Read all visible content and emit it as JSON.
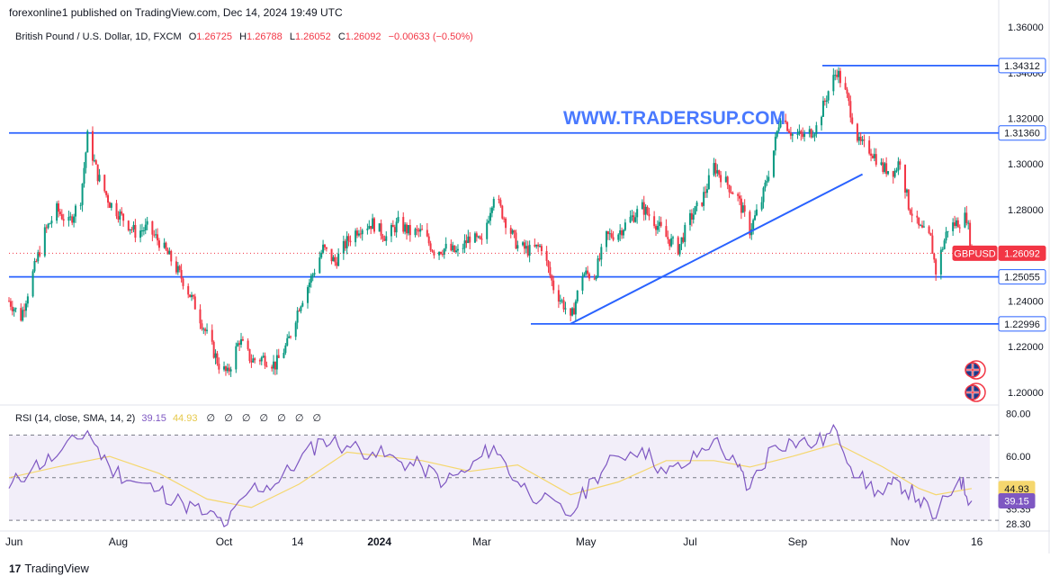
{
  "header": {
    "published": "forexonline1 published on TradingView.com, Dec 14, 2024 19:49 UTC"
  },
  "legend": {
    "symbol": "British Pound / U.S. Dollar, 1D, FXCM",
    "open_label": "O",
    "open": "1.26725",
    "high_label": "H",
    "high": "1.26788",
    "low_label": "L",
    "low": "1.26052",
    "close_label": "C",
    "close": "1.26092",
    "change": "−0.00633 (−0.50%)"
  },
  "watermark": "WWW.TRADERSUP.COM",
  "rsi_legend": {
    "label": "RSI (14, close, SMA, 14, 2)",
    "rsi_value": "39.15",
    "sma_value": "44.93",
    "icons": [
      "∅",
      "∅",
      "∅",
      "∅",
      "∅",
      "∅",
      "∅"
    ]
  },
  "footer": {
    "brand": "TradingView",
    "logo": "17"
  },
  "colors": {
    "up": "#089981",
    "down": "#f23645",
    "hline": "#2962ff",
    "rsi": "#7e57c2",
    "rsi_sma": "#f5d76e",
    "last_price": "#f23645"
  },
  "chart_data": [
    {
      "type": "candlestick",
      "symbol": "GBPUSD",
      "timeframe": "1D",
      "y_axis_labels": [
        "1.36000",
        "1.34000",
        "1.32000",
        "1.30000",
        "1.28000",
        "1.26000",
        "1.24000",
        "1.22000",
        "1.20000"
      ],
      "x_axis_labels": [
        "Jun",
        "Aug",
        "Oct",
        "14",
        "2024",
        "Mar",
        "May",
        "Jul",
        "Sep",
        "Nov",
        "16"
      ],
      "ylim": [
        1.196,
        1.362
      ],
      "last_price": 1.26092,
      "last_price_label": "GBPUSD",
      "horizontal_levels": [
        1.34312,
        1.3136,
        1.25055,
        1.22996
      ],
      "level_labels": [
        "1.34312",
        "1.31360",
        "1.25055",
        "1.22996"
      ],
      "trendline": {
        "from": {
          "x": "2024-04-22",
          "y": 1.23
        },
        "to": {
          "x": "2024-10-10",
          "y": 1.2955
        }
      },
      "path_points": [
        [
          "2023-05-29",
          1.24
        ],
        [
          "2023-06-05",
          1.233
        ],
        [
          "2023-06-12",
          1.252
        ],
        [
          "2023-06-19",
          1.27
        ],
        [
          "2023-06-26",
          1.28
        ],
        [
          "2023-07-03",
          1.274
        ],
        [
          "2023-07-10",
          1.285
        ],
        [
          "2023-07-14",
          1.312
        ],
        [
          "2023-07-20",
          1.295
        ],
        [
          "2023-07-27",
          1.283
        ],
        [
          "2023-08-04",
          1.276
        ],
        [
          "2023-08-11",
          1.27
        ],
        [
          "2023-08-18",
          1.272
        ],
        [
          "2023-08-25",
          1.266
        ],
        [
          "2023-09-01",
          1.258
        ],
        [
          "2023-09-08",
          1.249
        ],
        [
          "2023-09-15",
          1.238
        ],
        [
          "2023-09-22",
          1.225
        ],
        [
          "2023-09-29",
          1.212
        ],
        [
          "2023-10-04",
          1.208
        ],
        [
          "2023-10-11",
          1.223
        ],
        [
          "2023-10-18",
          1.214
        ],
        [
          "2023-10-25",
          1.215
        ],
        [
          "2023-11-01",
          1.212
        ],
        [
          "2023-11-08",
          1.221
        ],
        [
          "2023-11-15",
          1.238
        ],
        [
          "2023-11-22",
          1.25
        ],
        [
          "2023-11-29",
          1.263
        ],
        [
          "2023-12-06",
          1.257
        ],
        [
          "2023-12-13",
          1.266
        ],
        [
          "2023-12-20",
          1.272
        ],
        [
          "2023-12-28",
          1.274
        ],
        [
          "2024-01-05",
          1.268
        ],
        [
          "2024-01-12",
          1.274
        ],
        [
          "2024-01-19",
          1.27
        ],
        [
          "2024-01-26",
          1.27
        ],
        [
          "2024-02-02",
          1.262
        ],
        [
          "2024-02-09",
          1.263
        ],
        [
          "2024-02-16",
          1.261
        ],
        [
          "2024-02-23",
          1.268
        ],
        [
          "2024-03-01",
          1.265
        ],
        [
          "2024-03-08",
          1.287
        ],
        [
          "2024-03-15",
          1.275
        ],
        [
          "2024-03-22",
          1.264
        ],
        [
          "2024-03-29",
          1.262
        ],
        [
          "2024-04-05",
          1.264
        ],
        [
          "2024-04-12",
          1.246
        ],
        [
          "2024-04-19",
          1.237
        ],
        [
          "2024-04-22",
          1.231
        ],
        [
          "2024-04-29",
          1.252
        ],
        [
          "2024-05-06",
          1.251
        ],
        [
          "2024-05-13",
          1.268
        ],
        [
          "2024-05-20",
          1.27
        ],
        [
          "2024-05-27",
          1.276
        ],
        [
          "2024-06-03",
          1.281
        ],
        [
          "2024-06-10",
          1.275
        ],
        [
          "2024-06-17",
          1.268
        ],
        [
          "2024-06-24",
          1.263
        ],
        [
          "2024-07-01",
          1.276
        ],
        [
          "2024-07-08",
          1.284
        ],
        [
          "2024-07-15",
          1.299
        ],
        [
          "2024-07-22",
          1.292
        ],
        [
          "2024-07-29",
          1.285
        ],
        [
          "2024-08-05",
          1.271
        ],
        [
          "2024-08-12",
          1.284
        ],
        [
          "2024-08-19",
          1.306
        ],
        [
          "2024-08-23",
          1.322
        ],
        [
          "2024-08-30",
          1.313
        ],
        [
          "2024-09-06",
          1.312
        ],
        [
          "2024-09-13",
          1.316
        ],
        [
          "2024-09-20",
          1.332
        ],
        [
          "2024-09-25",
          1.341
        ],
        [
          "2024-10-01",
          1.329
        ],
        [
          "2024-10-08",
          1.309
        ],
        [
          "2024-10-15",
          1.306
        ],
        [
          "2024-10-22",
          1.298
        ],
        [
          "2024-10-29",
          1.297
        ],
        [
          "2024-11-01",
          1.302
        ],
        [
          "2024-11-06",
          1.282
        ],
        [
          "2024-11-12",
          1.272
        ],
        [
          "2024-11-19",
          1.267
        ],
        [
          "2024-11-22",
          1.253
        ],
        [
          "2024-11-29",
          1.272
        ],
        [
          "2024-12-06",
          1.275
        ],
        [
          "2024-12-10",
          1.277
        ],
        [
          "2024-12-13",
          1.261
        ]
      ]
    },
    {
      "type": "line",
      "name": "RSI (14, close, SMA, 14, 2)",
      "y_axis_labels": [
        "80.00",
        "60.00",
        "44.93",
        "39.15",
        "35.35",
        "28.30"
      ],
      "ylim": [
        25,
        82
      ],
      "band_upper": 70,
      "band_lower": 30,
      "midline": 50,
      "rsi_last": 39.15,
      "sma_last": 44.93,
      "rsi_points": [
        [
          "2023-05-29",
          45
        ],
        [
          "2023-06-12",
          55
        ],
        [
          "2023-06-26",
          60
        ],
        [
          "2023-07-14",
          72
        ],
        [
          "2023-07-27",
          55
        ],
        [
          "2023-08-11",
          48
        ],
        [
          "2023-08-25",
          44
        ],
        [
          "2023-09-08",
          38
        ],
        [
          "2023-09-22",
          33
        ],
        [
          "2023-10-04",
          28
        ],
        [
          "2023-10-18",
          45
        ],
        [
          "2023-11-01",
          47
        ],
        [
          "2023-11-15",
          58
        ],
        [
          "2023-11-29",
          68
        ],
        [
          "2023-12-13",
          65
        ],
        [
          "2023-12-28",
          62
        ],
        [
          "2024-01-12",
          58
        ],
        [
          "2024-01-26",
          55
        ],
        [
          "2024-02-09",
          48
        ],
        [
          "2024-02-23",
          54
        ],
        [
          "2024-03-08",
          65
        ],
        [
          "2024-03-22",
          48
        ],
        [
          "2024-04-05",
          40
        ],
        [
          "2024-04-22",
          32
        ],
        [
          "2024-05-06",
          50
        ],
        [
          "2024-05-20",
          60
        ],
        [
          "2024-06-03",
          64
        ],
        [
          "2024-06-17",
          52
        ],
        [
          "2024-07-01",
          57
        ],
        [
          "2024-07-15",
          68
        ],
        [
          "2024-07-29",
          55
        ],
        [
          "2024-08-05",
          45
        ],
        [
          "2024-08-19",
          65
        ],
        [
          "2024-08-30",
          67
        ],
        [
          "2024-09-13",
          66
        ],
        [
          "2024-09-25",
          72
        ],
        [
          "2024-10-08",
          50
        ],
        [
          "2024-10-22",
          42
        ],
        [
          "2024-11-01",
          48
        ],
        [
          "2024-11-12",
          40
        ],
        [
          "2024-11-22",
          31
        ],
        [
          "2024-12-06",
          50
        ],
        [
          "2024-12-13",
          39.15
        ]
      ],
      "sma_points": [
        [
          "2023-05-29",
          50
        ],
        [
          "2023-06-26",
          55
        ],
        [
          "2023-07-27",
          60
        ],
        [
          "2023-08-25",
          52
        ],
        [
          "2023-09-22",
          40
        ],
        [
          "2023-10-18",
          36
        ],
        [
          "2023-11-15",
          47
        ],
        [
          "2023-12-13",
          62
        ],
        [
          "2024-01-26",
          58
        ],
        [
          "2024-02-23",
          53
        ],
        [
          "2024-03-22",
          56
        ],
        [
          "2024-04-22",
          42
        ],
        [
          "2024-05-20",
          48
        ],
        [
          "2024-06-17",
          58
        ],
        [
          "2024-07-15",
          58
        ],
        [
          "2024-08-05",
          55
        ],
        [
          "2024-08-30",
          60
        ],
        [
          "2024-09-25",
          66
        ],
        [
          "2024-10-22",
          55
        ],
        [
          "2024-11-12",
          45
        ],
        [
          "2024-11-22",
          42
        ],
        [
          "2024-12-13",
          44.93
        ]
      ]
    }
  ]
}
